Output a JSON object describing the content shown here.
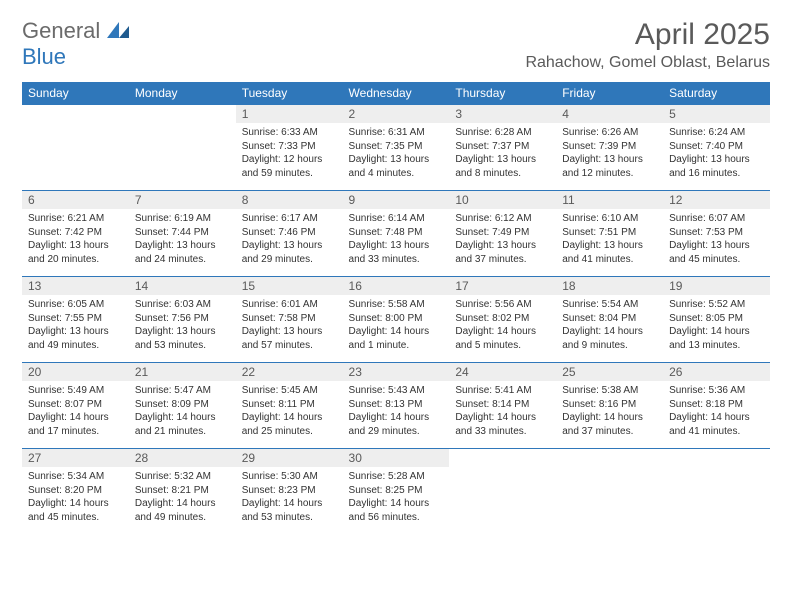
{
  "logo": {
    "part1": "General",
    "part2": "Blue"
  },
  "title": "April 2025",
  "location": "Rahachow, Gomel Oblast, Belarus",
  "colors": {
    "header_bg": "#2f77ba",
    "header_text": "#ffffff",
    "daynum_bg": "#eeeeee",
    "border": "#2f77ba",
    "body_text": "#333333",
    "title_text": "#5a5a5a"
  },
  "weekdays": [
    "Sunday",
    "Monday",
    "Tuesday",
    "Wednesday",
    "Thursday",
    "Friday",
    "Saturday"
  ],
  "weeks": [
    [
      {
        "n": "",
        "sunrise": "",
        "sunset": "",
        "daylight": ""
      },
      {
        "n": "",
        "sunrise": "",
        "sunset": "",
        "daylight": ""
      },
      {
        "n": "1",
        "sunrise": "Sunrise: 6:33 AM",
        "sunset": "Sunset: 7:33 PM",
        "daylight": "Daylight: 12 hours and 59 minutes."
      },
      {
        "n": "2",
        "sunrise": "Sunrise: 6:31 AM",
        "sunset": "Sunset: 7:35 PM",
        "daylight": "Daylight: 13 hours and 4 minutes."
      },
      {
        "n": "3",
        "sunrise": "Sunrise: 6:28 AM",
        "sunset": "Sunset: 7:37 PM",
        "daylight": "Daylight: 13 hours and 8 minutes."
      },
      {
        "n": "4",
        "sunrise": "Sunrise: 6:26 AM",
        "sunset": "Sunset: 7:39 PM",
        "daylight": "Daylight: 13 hours and 12 minutes."
      },
      {
        "n": "5",
        "sunrise": "Sunrise: 6:24 AM",
        "sunset": "Sunset: 7:40 PM",
        "daylight": "Daylight: 13 hours and 16 minutes."
      }
    ],
    [
      {
        "n": "6",
        "sunrise": "Sunrise: 6:21 AM",
        "sunset": "Sunset: 7:42 PM",
        "daylight": "Daylight: 13 hours and 20 minutes."
      },
      {
        "n": "7",
        "sunrise": "Sunrise: 6:19 AM",
        "sunset": "Sunset: 7:44 PM",
        "daylight": "Daylight: 13 hours and 24 minutes."
      },
      {
        "n": "8",
        "sunrise": "Sunrise: 6:17 AM",
        "sunset": "Sunset: 7:46 PM",
        "daylight": "Daylight: 13 hours and 29 minutes."
      },
      {
        "n": "9",
        "sunrise": "Sunrise: 6:14 AM",
        "sunset": "Sunset: 7:48 PM",
        "daylight": "Daylight: 13 hours and 33 minutes."
      },
      {
        "n": "10",
        "sunrise": "Sunrise: 6:12 AM",
        "sunset": "Sunset: 7:49 PM",
        "daylight": "Daylight: 13 hours and 37 minutes."
      },
      {
        "n": "11",
        "sunrise": "Sunrise: 6:10 AM",
        "sunset": "Sunset: 7:51 PM",
        "daylight": "Daylight: 13 hours and 41 minutes."
      },
      {
        "n": "12",
        "sunrise": "Sunrise: 6:07 AM",
        "sunset": "Sunset: 7:53 PM",
        "daylight": "Daylight: 13 hours and 45 minutes."
      }
    ],
    [
      {
        "n": "13",
        "sunrise": "Sunrise: 6:05 AM",
        "sunset": "Sunset: 7:55 PM",
        "daylight": "Daylight: 13 hours and 49 minutes."
      },
      {
        "n": "14",
        "sunrise": "Sunrise: 6:03 AM",
        "sunset": "Sunset: 7:56 PM",
        "daylight": "Daylight: 13 hours and 53 minutes."
      },
      {
        "n": "15",
        "sunrise": "Sunrise: 6:01 AM",
        "sunset": "Sunset: 7:58 PM",
        "daylight": "Daylight: 13 hours and 57 minutes."
      },
      {
        "n": "16",
        "sunrise": "Sunrise: 5:58 AM",
        "sunset": "Sunset: 8:00 PM",
        "daylight": "Daylight: 14 hours and 1 minute."
      },
      {
        "n": "17",
        "sunrise": "Sunrise: 5:56 AM",
        "sunset": "Sunset: 8:02 PM",
        "daylight": "Daylight: 14 hours and 5 minutes."
      },
      {
        "n": "18",
        "sunrise": "Sunrise: 5:54 AM",
        "sunset": "Sunset: 8:04 PM",
        "daylight": "Daylight: 14 hours and 9 minutes."
      },
      {
        "n": "19",
        "sunrise": "Sunrise: 5:52 AM",
        "sunset": "Sunset: 8:05 PM",
        "daylight": "Daylight: 14 hours and 13 minutes."
      }
    ],
    [
      {
        "n": "20",
        "sunrise": "Sunrise: 5:49 AM",
        "sunset": "Sunset: 8:07 PM",
        "daylight": "Daylight: 14 hours and 17 minutes."
      },
      {
        "n": "21",
        "sunrise": "Sunrise: 5:47 AM",
        "sunset": "Sunset: 8:09 PM",
        "daylight": "Daylight: 14 hours and 21 minutes."
      },
      {
        "n": "22",
        "sunrise": "Sunrise: 5:45 AM",
        "sunset": "Sunset: 8:11 PM",
        "daylight": "Daylight: 14 hours and 25 minutes."
      },
      {
        "n": "23",
        "sunrise": "Sunrise: 5:43 AM",
        "sunset": "Sunset: 8:13 PM",
        "daylight": "Daylight: 14 hours and 29 minutes."
      },
      {
        "n": "24",
        "sunrise": "Sunrise: 5:41 AM",
        "sunset": "Sunset: 8:14 PM",
        "daylight": "Daylight: 14 hours and 33 minutes."
      },
      {
        "n": "25",
        "sunrise": "Sunrise: 5:38 AM",
        "sunset": "Sunset: 8:16 PM",
        "daylight": "Daylight: 14 hours and 37 minutes."
      },
      {
        "n": "26",
        "sunrise": "Sunrise: 5:36 AM",
        "sunset": "Sunset: 8:18 PM",
        "daylight": "Daylight: 14 hours and 41 minutes."
      }
    ],
    [
      {
        "n": "27",
        "sunrise": "Sunrise: 5:34 AM",
        "sunset": "Sunset: 8:20 PM",
        "daylight": "Daylight: 14 hours and 45 minutes."
      },
      {
        "n": "28",
        "sunrise": "Sunrise: 5:32 AM",
        "sunset": "Sunset: 8:21 PM",
        "daylight": "Daylight: 14 hours and 49 minutes."
      },
      {
        "n": "29",
        "sunrise": "Sunrise: 5:30 AM",
        "sunset": "Sunset: 8:23 PM",
        "daylight": "Daylight: 14 hours and 53 minutes."
      },
      {
        "n": "30",
        "sunrise": "Sunrise: 5:28 AM",
        "sunset": "Sunset: 8:25 PM",
        "daylight": "Daylight: 14 hours and 56 minutes."
      },
      {
        "n": "",
        "sunrise": "",
        "sunset": "",
        "daylight": ""
      },
      {
        "n": "",
        "sunrise": "",
        "sunset": "",
        "daylight": ""
      },
      {
        "n": "",
        "sunrise": "",
        "sunset": "",
        "daylight": ""
      }
    ]
  ]
}
